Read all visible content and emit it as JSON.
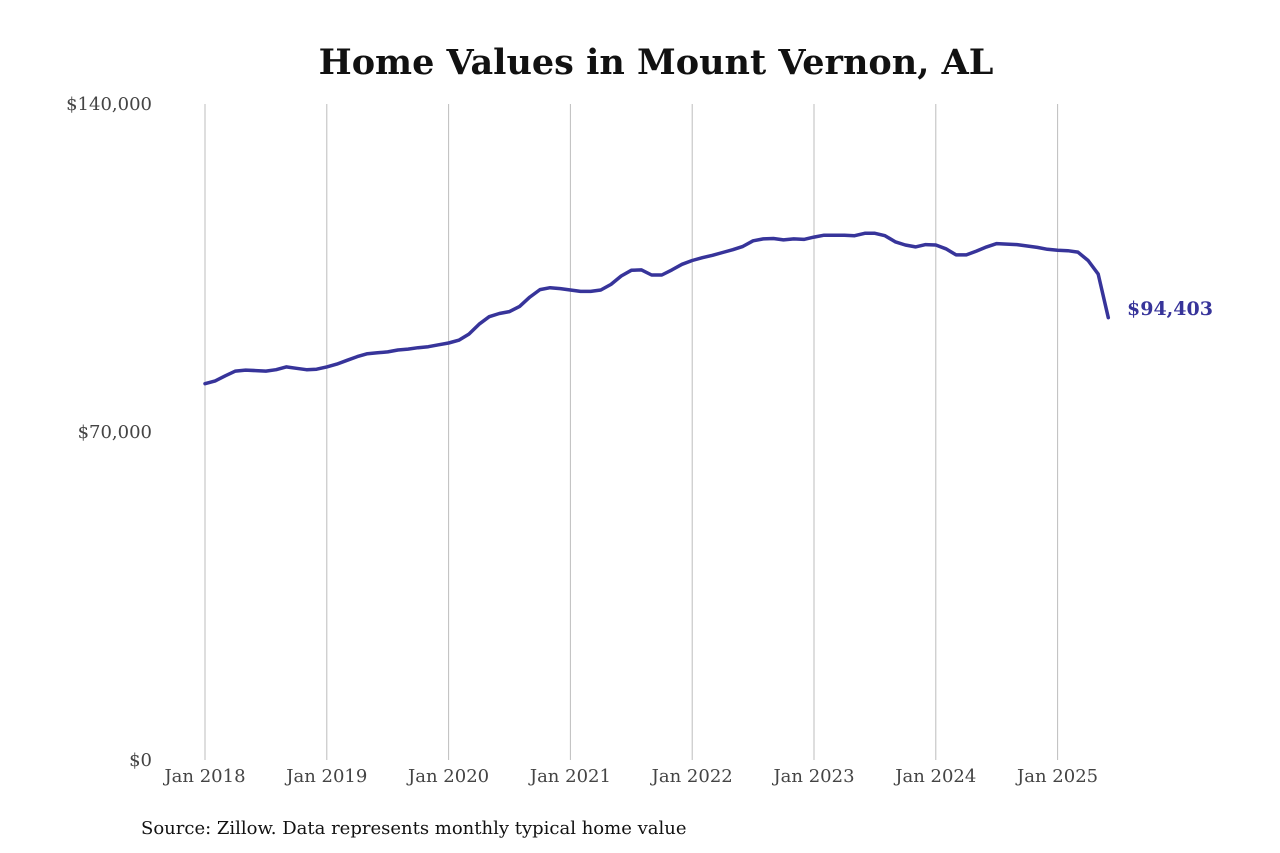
{
  "chart_data": {
    "type": "line",
    "title": "Home Values in Mount Vernon, AL",
    "source": "Source: Zillow. Data represents monthly typical home value",
    "y_tick_labels": [
      "$140,000",
      "$70,000",
      "$0"
    ],
    "y_ticks": [
      140000,
      70000,
      0
    ],
    "x_tick_labels": [
      "Jan 2018",
      "Jan 2019",
      "Jan 2020",
      "Jan 2021",
      "Jan 2022",
      "Jan 2023",
      "Jan 2024",
      "Jan 2025"
    ],
    "x_ticks": [
      "2018-01",
      "2019-01",
      "2020-01",
      "2021-01",
      "2022-01",
      "2023-01",
      "2024-01",
      "2025-01"
    ],
    "ylim": [
      0,
      140000
    ],
    "xlim": [
      "2018-01",
      "2025-06"
    ],
    "grid": "vertical",
    "line_color": "#37349a",
    "end_label": "$94,403",
    "series": [
      {
        "x": [
          "2018-01",
          "2018-02",
          "2018-03",
          "2018-04",
          "2018-05",
          "2018-06",
          "2018-07",
          "2018-08",
          "2018-09",
          "2018-10",
          "2018-11",
          "2018-12",
          "2019-01",
          "2019-02",
          "2019-03",
          "2019-04",
          "2019-05",
          "2019-06",
          "2019-07",
          "2019-08",
          "2019-09",
          "2019-10",
          "2019-11",
          "2019-12",
          "2020-01",
          "2020-02",
          "2020-03",
          "2020-04",
          "2020-05",
          "2020-06",
          "2020-07",
          "2020-08",
          "2020-09",
          "2020-10",
          "2020-11",
          "2020-12",
          "2021-01",
          "2021-02",
          "2021-03",
          "2021-04",
          "2021-05",
          "2021-06",
          "2021-07",
          "2021-08",
          "2021-09",
          "2021-10",
          "2021-11",
          "2021-12",
          "2022-01",
          "2022-02",
          "2022-03",
          "2022-04",
          "2022-05",
          "2022-06",
          "2022-07",
          "2022-08",
          "2022-09",
          "2022-10",
          "2022-11",
          "2022-12",
          "2023-01",
          "2023-02",
          "2023-03",
          "2023-04",
          "2023-05",
          "2023-06",
          "2023-07",
          "2023-08",
          "2023-09",
          "2023-10",
          "2023-11",
          "2023-12",
          "2024-01",
          "2024-02",
          "2024-03",
          "2024-04",
          "2024-05",
          "2024-06",
          "2024-07",
          "2024-08",
          "2024-09",
          "2024-10",
          "2024-11",
          "2024-12",
          "2025-01",
          "2025-02",
          "2025-03",
          "2025-04",
          "2025-05",
          "2025-06"
        ],
        "y": [
          80300,
          80900,
          82000,
          83000,
          83200,
          83100,
          83000,
          83300,
          83900,
          83600,
          83300,
          83400,
          83900,
          84500,
          85300,
          86100,
          86700,
          86900,
          87100,
          87500,
          87700,
          88000,
          88200,
          88600,
          89000,
          89600,
          90900,
          93000,
          94600,
          95300,
          95700,
          96800,
          98800,
          100400,
          100800,
          100600,
          100300,
          100000,
          100000,
          100300,
          101500,
          103300,
          104500,
          104600,
          103500,
          103500,
          104600,
          105800,
          106600,
          107200,
          107700,
          108300,
          108900,
          109600,
          110800,
          111200,
          111300,
          111000,
          111200,
          111100,
          111600,
          112000,
          112000,
          112000,
          111900,
          112400,
          112400,
          111900,
          110600,
          109900,
          109500,
          110000,
          109900,
          109100,
          107800,
          107800,
          108600,
          109500,
          110200,
          110100,
          110000,
          109700,
          109400,
          109000,
          108800,
          108700,
          108400,
          106600,
          103700,
          94403
        ]
      }
    ]
  }
}
